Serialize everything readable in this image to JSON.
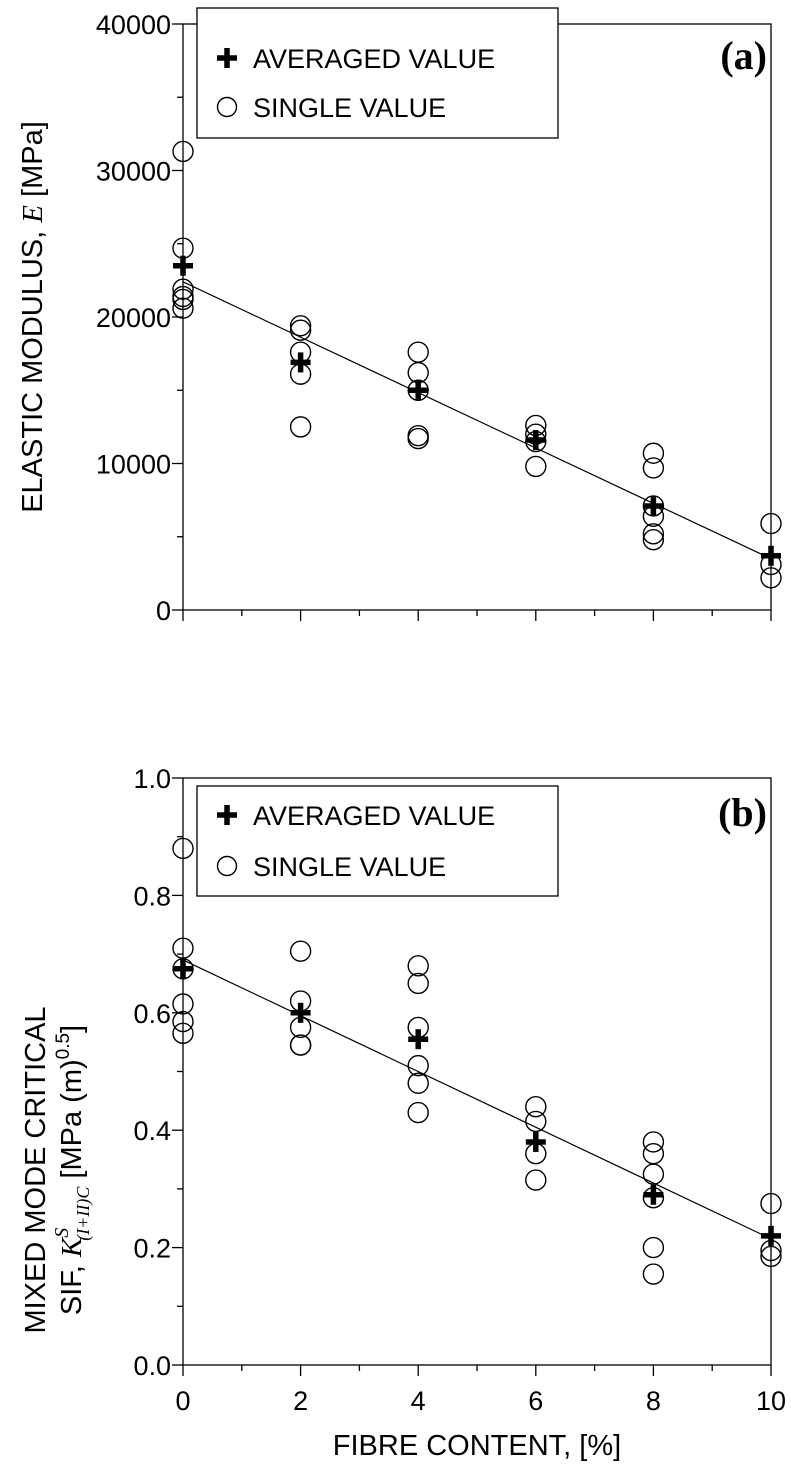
{
  "figure": {
    "xlabel": "FIBRE CONTENT, [%]",
    "legend": {
      "averaged": "AVERAGED VALUE",
      "single": "SINGLE VALUE"
    }
  },
  "chart_data": [
    {
      "type": "scatter",
      "panel": "(a)",
      "ylabel": {
        "prefix": "ELASTIC MODULUS, ",
        "symbol": "E",
        "suffix": " [MPa]"
      },
      "xlabel": "",
      "xlim": [
        0,
        10
      ],
      "ylim": [
        0,
        40000
      ],
      "xticks": [
        0,
        2,
        4,
        6,
        8,
        10
      ],
      "xticks_show_labels": false,
      "yticks": [
        0,
        10000,
        20000,
        30000,
        40000
      ],
      "yticks_minor": [
        5000,
        15000,
        25000,
        35000
      ],
      "grid": false,
      "legend_position": "top-left",
      "series": [
        {
          "name": "AVERAGED VALUE",
          "marker": "plus",
          "points": [
            [
              0,
              23500
            ],
            [
              2,
              16900
            ],
            [
              4,
              15000
            ],
            [
              6,
              11600
            ],
            [
              8,
              7100
            ],
            [
              10,
              3700
            ]
          ]
        },
        {
          "name": "SINGLE VALUE",
          "marker": "open-circle",
          "points": [
            [
              0,
              31300
            ],
            [
              0,
              24700
            ],
            [
              0,
              21900
            ],
            [
              0,
              21400
            ],
            [
              0,
              21200
            ],
            [
              0,
              20600
            ],
            [
              2,
              19400
            ],
            [
              2,
              19100
            ],
            [
              2,
              17600
            ],
            [
              2,
              16100
            ],
            [
              2,
              12500
            ],
            [
              4,
              17600
            ],
            [
              4,
              16200
            ],
            [
              4,
              15000
            ],
            [
              4,
              11900
            ],
            [
              4,
              11700
            ],
            [
              6,
              12600
            ],
            [
              6,
              12000
            ],
            [
              6,
              11500
            ],
            [
              6,
              9800
            ],
            [
              8,
              10700
            ],
            [
              8,
              9700
            ],
            [
              8,
              7100
            ],
            [
              8,
              6400
            ],
            [
              8,
              5200
            ],
            [
              8,
              4800
            ],
            [
              10,
              5900
            ],
            [
              10,
              3100
            ],
            [
              10,
              2200
            ]
          ]
        },
        {
          "name": "",
          "marker": "none",
          "line": "fit",
          "points": [
            [
              0,
              22400
            ],
            [
              10,
              3500
            ]
          ]
        }
      ]
    },
    {
      "type": "scatter",
      "panel": "(b)",
      "ylabel": {
        "line1": "MIXED MODE CRITICAL",
        "prefix": "SIF, ",
        "symbol": "K",
        "superscript": "S",
        "subscript": "(I+II)C",
        "unit": " [MPa (m)",
        "unit_exp": "0.5",
        "unit_close": "]"
      },
      "xlabel": "FIBRE CONTENT, [%]",
      "xlim": [
        0,
        10
      ],
      "ylim": [
        0,
        1.0
      ],
      "xticks": [
        0,
        2,
        4,
        6,
        8,
        10
      ],
      "xtick_labels": [
        "0",
        "2",
        "4",
        "6",
        "8",
        "10"
      ],
      "yticks": [
        0.0,
        0.2,
        0.4,
        0.6,
        0.8,
        1.0
      ],
      "ytick_labels": [
        "0.0",
        "0.2",
        "0.4",
        "0.6",
        "0.8",
        "1.0"
      ],
      "yticks_minor": [
        0.1,
        0.3,
        0.5,
        0.7,
        0.9
      ],
      "grid": false,
      "legend_position": "top-left",
      "series": [
        {
          "name": "AVERAGED VALUE",
          "marker": "plus",
          "points": [
            [
              0,
              0.675
            ],
            [
              2,
              0.6
            ],
            [
              4,
              0.555
            ],
            [
              6,
              0.38
            ],
            [
              8,
              0.29
            ],
            [
              10,
              0.22
            ]
          ]
        },
        {
          "name": "SINGLE VALUE",
          "marker": "open-circle",
          "points": [
            [
              0,
              0.88
            ],
            [
              0,
              0.71
            ],
            [
              0,
              0.675
            ],
            [
              0,
              0.615
            ],
            [
              0,
              0.585
            ],
            [
              0,
              0.565
            ],
            [
              2,
              0.705
            ],
            [
              2,
              0.62
            ],
            [
              2,
              0.575
            ],
            [
              2,
              0.545
            ],
            [
              2,
              0.545
            ],
            [
              4,
              0.68
            ],
            [
              4,
              0.65
            ],
            [
              4,
              0.575
            ],
            [
              4,
              0.51
            ],
            [
              4,
              0.48
            ],
            [
              4,
              0.43
            ],
            [
              6,
              0.44
            ],
            [
              6,
              0.415
            ],
            [
              6,
              0.36
            ],
            [
              6,
              0.315
            ],
            [
              8,
              0.38
            ],
            [
              8,
              0.36
            ],
            [
              8,
              0.325
            ],
            [
              8,
              0.285
            ],
            [
              8,
              0.2
            ],
            [
              8,
              0.155
            ],
            [
              10,
              0.275
            ],
            [
              10,
              0.195
            ],
            [
              10,
              0.185
            ]
          ]
        },
        {
          "name": "",
          "marker": "none",
          "line": "fit",
          "points": [
            [
              0,
              0.69
            ],
            [
              10,
              0.215
            ]
          ]
        }
      ]
    }
  ]
}
